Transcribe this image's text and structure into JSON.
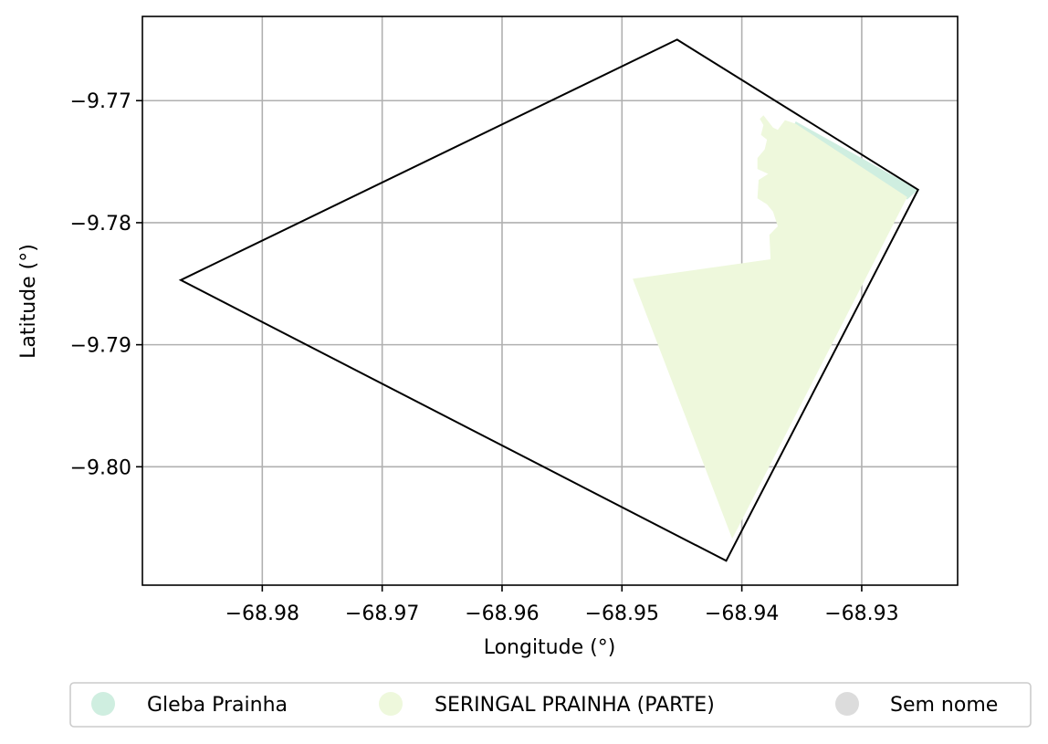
{
  "chart_data": {
    "type": "map",
    "xlabel": "Longitude (°)",
    "ylabel": "Latitude (°)",
    "xlim": [
      -68.99,
      -68.922
    ],
    "ylim": [
      -9.8097,
      -9.7631
    ],
    "x_ticks": [
      -68.98,
      -68.97,
      -68.96,
      -68.95,
      -68.94,
      -68.93
    ],
    "x_tick_labels": [
      "−68.98",
      "−68.97",
      "−68.96",
      "−68.95",
      "−68.94",
      "−68.93"
    ],
    "y_ticks": [
      -9.77,
      -9.78,
      -9.79,
      -9.8
    ],
    "y_tick_labels": [
      "−9.77",
      "−9.78",
      "−9.79",
      "−9.80"
    ],
    "grid": true,
    "legend_position": "bottom-center",
    "legend": [
      {
        "label": "Gleba Prainha",
        "color": "#cfeee0"
      },
      {
        "label": "SERINGAL PRAINHA (PARTE)",
        "color": "#eef8dc"
      },
      {
        "label": "Sem nome",
        "color": "#dcdcdc"
      }
    ],
    "regions": [
      {
        "name": "Gleba Prainha",
        "fill": "#cfeee0",
        "polygon": [
          [
            -68.9355,
            -9.7717
          ],
          [
            -68.9253,
            -9.7773
          ],
          [
            -68.9262,
            -9.7781
          ],
          [
            -68.9356,
            -9.7719
          ]
        ]
      },
      {
        "name": "SERINGAL PRAINHA (PARTE)",
        "fill": "#eef8dc",
        "polygon": [
          [
            -68.9382,
            -9.7712
          ],
          [
            -68.9374,
            -9.7722
          ],
          [
            -68.937,
            -9.7724
          ],
          [
            -68.9364,
            -9.7716
          ],
          [
            -68.9355,
            -9.7719
          ],
          [
            -68.9262,
            -9.7779
          ],
          [
            -68.9408,
            -9.8059
          ],
          [
            -68.9491,
            -9.7846
          ],
          [
            -68.9376,
            -9.783
          ],
          [
            -68.9377,
            -9.781
          ],
          [
            -68.937,
            -9.7803
          ],
          [
            -68.9374,
            -9.7791
          ],
          [
            -68.9379,
            -9.7785
          ],
          [
            -68.9387,
            -9.778
          ],
          [
            -68.9386,
            -9.7765
          ],
          [
            -68.9378,
            -9.776
          ],
          [
            -68.9387,
            -9.7756
          ],
          [
            -68.9387,
            -9.7747
          ],
          [
            -68.9381,
            -9.774
          ],
          [
            -68.9379,
            -9.7732
          ],
          [
            -68.9384,
            -9.7728
          ],
          [
            -68.9382,
            -9.772
          ],
          [
            -68.9385,
            -9.7715
          ]
        ]
      },
      {
        "name": "Sem nome",
        "fill": "none",
        "stroke": "#000000",
        "polygon": [
          [
            -68.9454,
            -9.765
          ],
          [
            -68.9253,
            -9.7773
          ],
          [
            -68.9413,
            -9.8077
          ],
          [
            -68.9868,
            -9.7847
          ]
        ]
      }
    ]
  }
}
